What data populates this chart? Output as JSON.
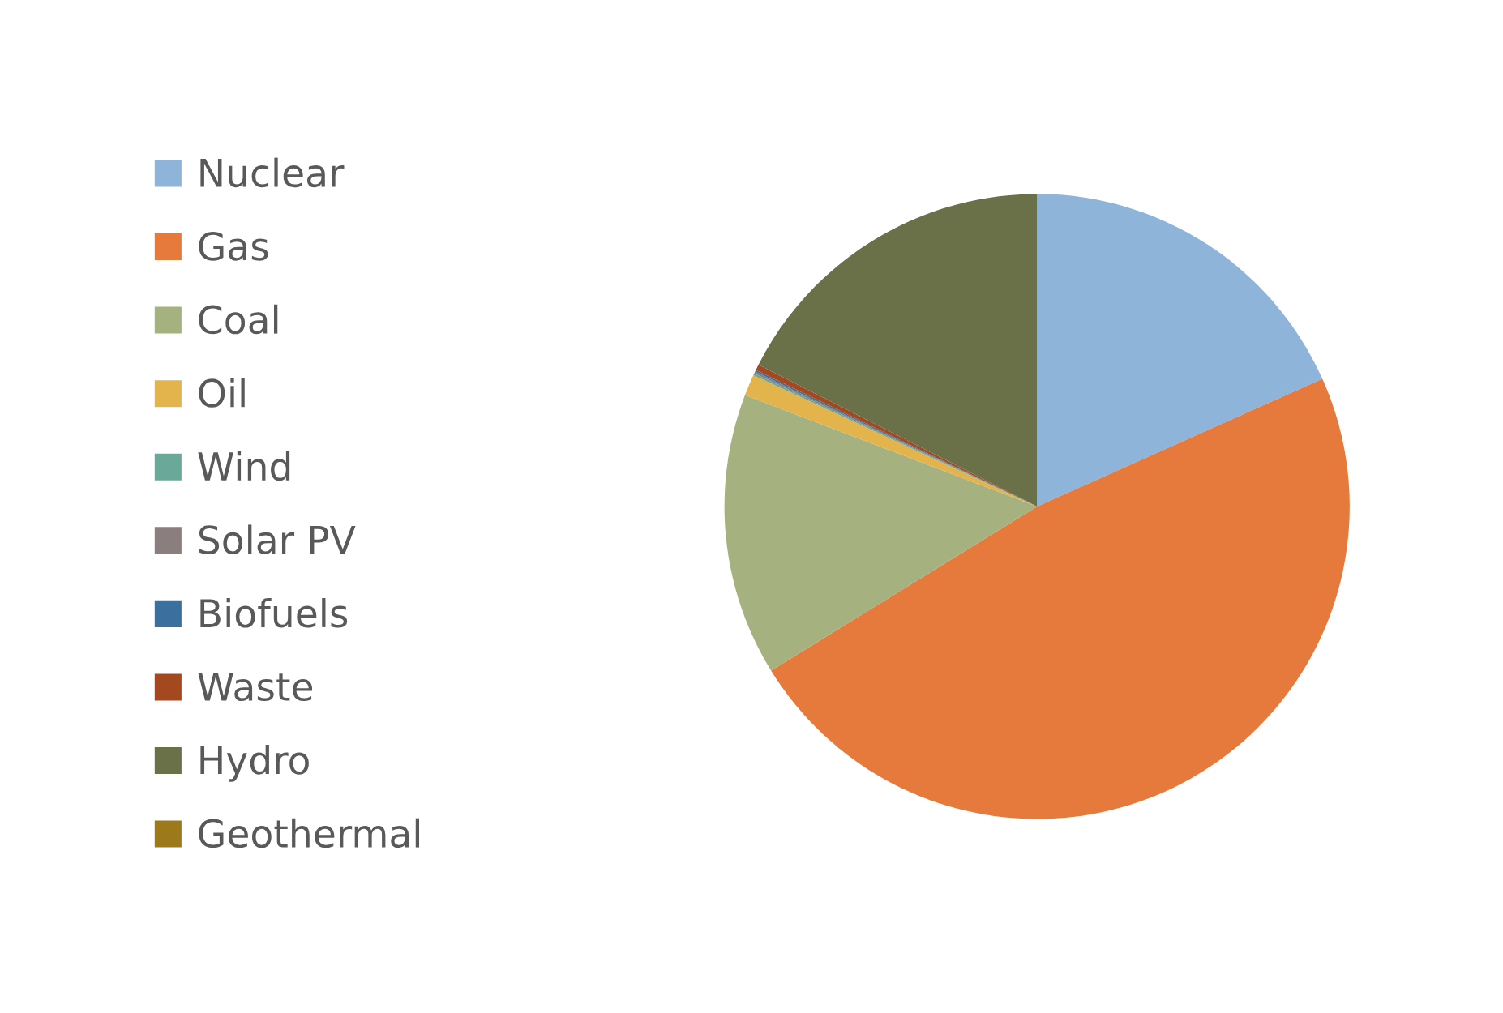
{
  "chart_data": {
    "type": "pie",
    "categories": [
      "Nuclear",
      "Gas",
      "Coal",
      "Oil",
      "Wind",
      "Solar PV",
      "Biofuels",
      "Waste",
      "Hydro",
      "Geothermal"
    ],
    "values": [
      18.3,
      47.9,
      14.6,
      1.1,
      0.1,
      0.1,
      0.1,
      0.3,
      17.5,
      0.0
    ],
    "colors": [
      "#8fb4d9",
      "#e57a3c",
      "#a5b17f",
      "#e3b44b",
      "#6aa89a",
      "#8a7e7e",
      "#3a6f9e",
      "#a4481f",
      "#6a7048",
      "#9c7a1c"
    ],
    "legend": "left"
  }
}
